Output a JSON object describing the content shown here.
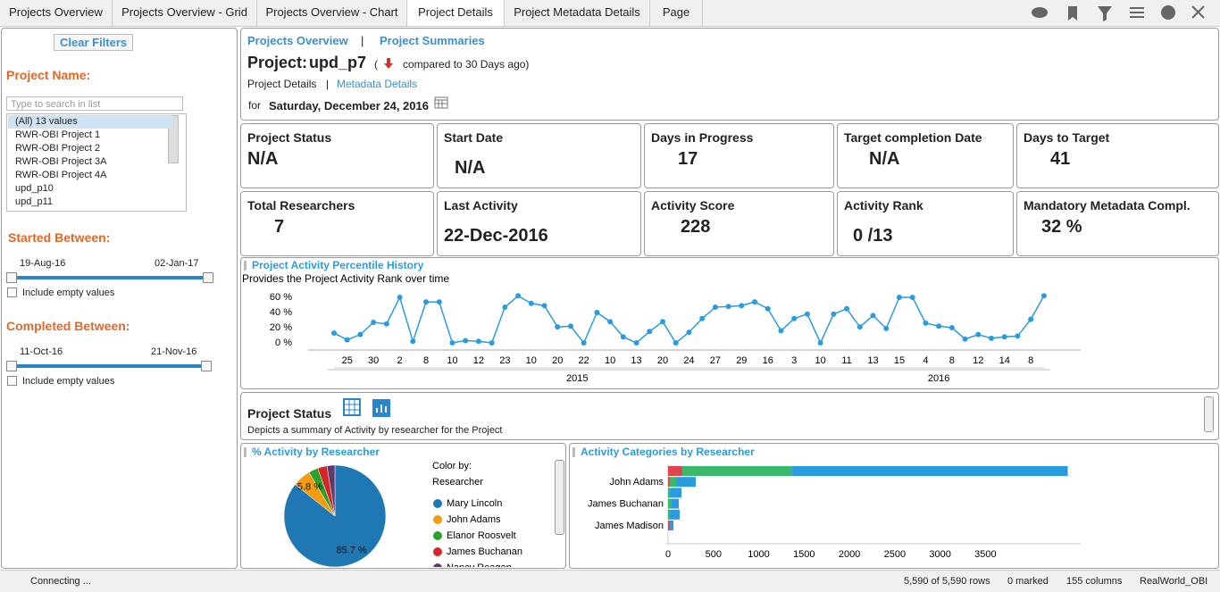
{
  "tabs": [
    "Projects Overview",
    "Projects Overview - Grid",
    "Projects Overview - Chart",
    "Project Details",
    "Project Metadata Details",
    "Page"
  ],
  "active_tab": 3,
  "filters": {
    "clear": "Clear Filters",
    "project_name_label": "Project Name:",
    "search_placeholder": "Type to search in list",
    "items": [
      "(All) 13 values",
      "RWR-OBI Project 1",
      "RWR-OBI Project 2",
      "RWR-OBI Project 3A",
      "RWR-OBI Project 4A",
      "upd_p10",
      "upd_p11"
    ],
    "started": {
      "label": "Started Between:",
      "from": "19-Aug-16",
      "to": "02-Jan-17",
      "include": "Include empty values"
    },
    "completed": {
      "label": "Completed Between:",
      "from": "11-Oct-16",
      "to": "21-Nov-16",
      "include": "Include empty values"
    }
  },
  "header": {
    "nav": [
      "Projects Overview",
      "|",
      "Project Summaries"
    ],
    "project_label": "Project:",
    "project_name": "upd_p7",
    "compare_open": "(",
    "compare_text": "compared to 30 Days ago)",
    "links": [
      "Project Details",
      "|",
      "Metadata Details"
    ],
    "for": "for",
    "date": "Saturday, December 24, 2016"
  },
  "kpis": [
    {
      "label": "Project Status",
      "value": "N/A"
    },
    {
      "label": "Start Date",
      "value": "N/A"
    },
    {
      "label": "Days in Progress",
      "value": "17"
    },
    {
      "label": "Target completion Date",
      "value": "N/A"
    },
    {
      "label": "Days to Target",
      "value": "41"
    },
    {
      "label": "Total Researchers",
      "value": "7"
    },
    {
      "label": "Last Activity",
      "value": "22-Dec-2016"
    },
    {
      "label": "Activity Score",
      "value": "228"
    },
    {
      "label": "Activity Rank",
      "value": "0 /13"
    },
    {
      "label": "Mandatory Metadata Compl.",
      "value": "32 %"
    }
  ],
  "project_status": {
    "title": "Project Status",
    "description": "Depicts a summary of Activity by researcher for the Project"
  },
  "chart_data": [
    {
      "type": "line",
      "title": "Project Activity Percentile History",
      "subtitle": "Provides the Project Activity Rank over time",
      "color": "#2b9be0",
      "categories": [
        null,
        "25",
        null,
        "30",
        null,
        "2",
        null,
        "8",
        null,
        "10",
        null,
        "12",
        null,
        "23",
        null,
        "10",
        null,
        "20",
        null,
        "22",
        null,
        "10",
        null,
        "13",
        null,
        "20",
        null,
        "24",
        null,
        "27",
        null,
        "29",
        null,
        "16",
        null,
        "3",
        null,
        "10",
        null,
        "11",
        null,
        "13",
        null,
        "15",
        null,
        "4",
        null,
        "8",
        null,
        "12",
        null,
        "14",
        null,
        "8",
        null
      ],
      "values": [
        13,
        4,
        11,
        27,
        25,
        60,
        2,
        54,
        54,
        0,
        3,
        2,
        0,
        47,
        62,
        52,
        49,
        21,
        22,
        0,
        40,
        28,
        8,
        0,
        15,
        28,
        0,
        14,
        32,
        47,
        48,
        49,
        54,
        45,
        16,
        32,
        38,
        0,
        38,
        45,
        21,
        36,
        19,
        60,
        60,
        26,
        22,
        20,
        5,
        11,
        6,
        8,
        9,
        31,
        62
      ],
      "x_groups": [
        {
          "label": "2015",
          "count": 38
        },
        {
          "label": "2016",
          "count": 17
        }
      ],
      "ylim": [
        -2,
        64
      ],
      "yticks": [
        {
          "value": 0,
          "label": "0 %"
        },
        {
          "value": 20,
          "label": "20 %"
        },
        {
          "value": 40,
          "label": "40 %"
        },
        {
          "value": 60,
          "label": "60 %"
        }
      ],
      "grid": false
    },
    {
      "type": "pie",
      "title": "% Activity by Researcher",
      "legend_title": "Color by:",
      "legend_subtitle": "Researcher",
      "categories": [
        "Mary Lincoln",
        "John Adams",
        "Elanor Roosvelt",
        "James Buchanan",
        "Nancy Reagan"
      ],
      "values": [
        85.7,
        5.8,
        3.0,
        3.0,
        2.5
      ],
      "value_labels": [
        "85.7 %",
        "5.8 %",
        null,
        null,
        null
      ],
      "colors": [
        "#1f77b4",
        "#f39c12",
        "#2ca02c",
        "#d62728",
        "#5b3a6e"
      ]
    },
    {
      "type": "bar",
      "orientation": "horizontal",
      "stacked": true,
      "title": "Activity Categories by Researcher",
      "categories": [
        null,
        "John Adams",
        null,
        "James Buchanan",
        null,
        "James Madison"
      ],
      "series": [
        {
          "color": "#e0474c",
          "values": [
            158,
            20,
            0,
            0,
            0,
            20
          ]
        },
        {
          "color": "#3cb86a",
          "values": [
            1203,
            69,
            20,
            39,
            20,
            0
          ]
        },
        {
          "color": "#2b9be0",
          "values": [
            3047,
            217,
            128,
            79,
            108,
            39
          ]
        }
      ],
      "xlim": [
        0,
        4550
      ],
      "xticks": [
        0,
        500,
        1000,
        1500,
        2000,
        2500,
        3000,
        3500
      ]
    }
  ],
  "status_bar": {
    "connecting": "Connecting ...",
    "rows": "5,590 of 5,590 rows",
    "marked": "0 marked",
    "columns": "155 columns",
    "source": "RealWorld_OBI"
  }
}
